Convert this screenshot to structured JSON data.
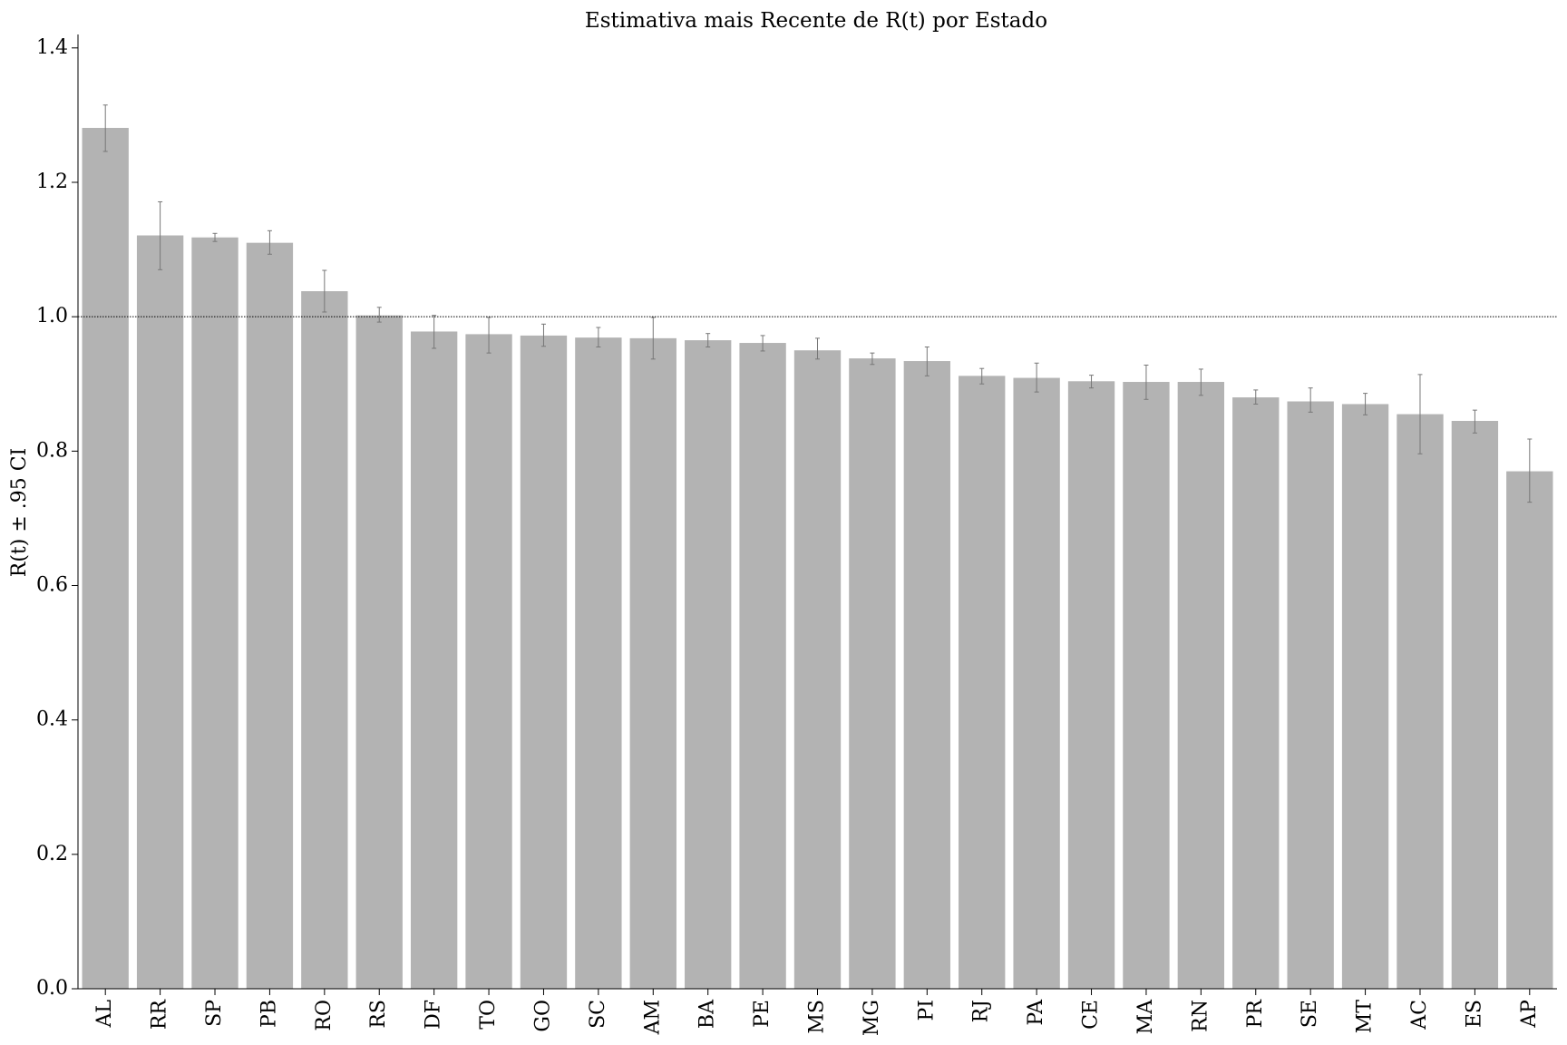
{
  "chart_data": {
    "type": "bar",
    "title": "Estimativa mais Recente de R(t) por Estado",
    "y_label": "R(t) ± .95 CI",
    "categories": [
      "AL",
      "RR",
      "SP",
      "PB",
      "RO",
      "RS",
      "DF",
      "TO",
      "GO",
      "SC",
      "AM",
      "BA",
      "PE",
      "MS",
      "MG",
      "PI",
      "RJ",
      "PA",
      "CE",
      "MA",
      "RN",
      "PR",
      "SE",
      "MT",
      "AC",
      "ES",
      "AP"
    ],
    "values": [
      1.281,
      1.121,
      1.118,
      1.11,
      1.038,
      1.002,
      0.978,
      0.974,
      0.972,
      0.969,
      0.968,
      0.965,
      0.961,
      0.95,
      0.938,
      0.934,
      0.912,
      0.909,
      0.904,
      0.903,
      0.903,
      0.88,
      0.874,
      0.87,
      0.855,
      0.845,
      0.77
    ],
    "ci_lower": [
      1.246,
      1.07,
      1.112,
      1.093,
      1.007,
      0.992,
      0.953,
      0.946,
      0.956,
      0.955,
      0.937,
      0.955,
      0.949,
      0.937,
      0.929,
      0.912,
      0.9,
      0.888,
      0.894,
      0.877,
      0.883,
      0.87,
      0.858,
      0.854,
      0.796,
      0.827,
      0.724
    ],
    "ci_upper": [
      1.315,
      1.171,
      1.124,
      1.128,
      1.069,
      1.014,
      1.002,
      0.999,
      0.989,
      0.984,
      0.999,
      0.975,
      0.972,
      0.968,
      0.946,
      0.955,
      0.923,
      0.931,
      0.913,
      0.928,
      0.922,
      0.891,
      0.894,
      0.886,
      0.914,
      0.861,
      0.818
    ],
    "color": "#b3b3b3",
    "error_color": "#777777",
    "reference_line": 1.0,
    "ylim": [
      0,
      1.42
    ],
    "yticks": [
      {
        "value": 0,
        "label": "0.0"
      },
      0.2,
      0.4,
      0.6,
      0.8,
      {
        "value": 1,
        "label": "1.0"
      },
      1.2,
      1.4
    ]
  }
}
